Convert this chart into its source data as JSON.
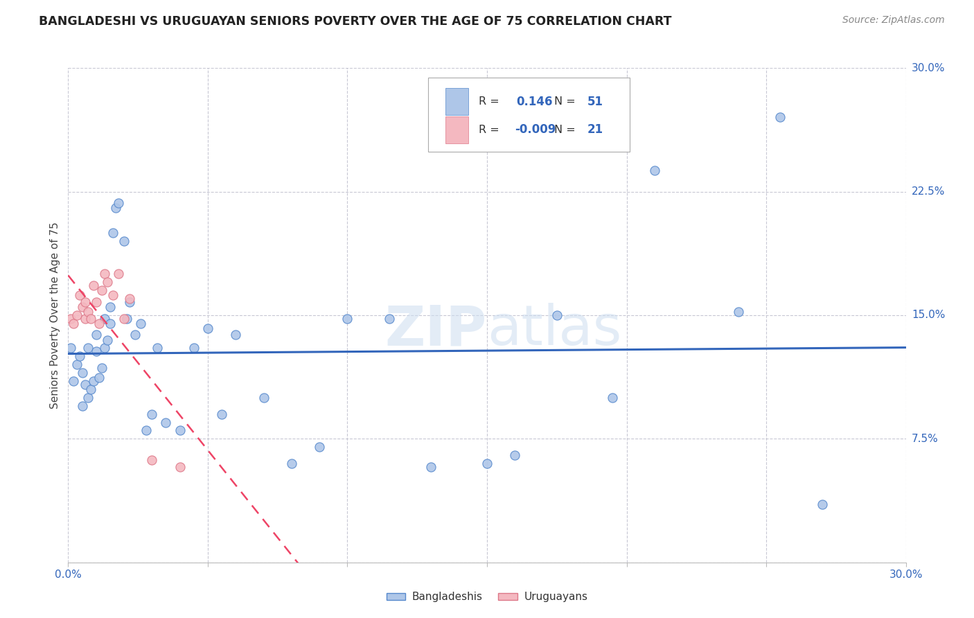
{
  "title": "BANGLADESHI VS URUGUAYAN SENIORS POVERTY OVER THE AGE OF 75 CORRELATION CHART",
  "source": "Source: ZipAtlas.com",
  "ylabel": "Seniors Poverty Over the Age of 75",
  "xlim": [
    0.0,
    0.3
  ],
  "ylim": [
    0.0,
    0.3
  ],
  "xticks": [
    0.0,
    0.05,
    0.1,
    0.15,
    0.2,
    0.25,
    0.3
  ],
  "yticks": [
    0.0,
    0.075,
    0.15,
    0.225,
    0.3
  ],
  "background_color": "#ffffff",
  "grid_color": "#c8c8d4",
  "watermark": "ZIPatlas",
  "bangladeshi_color": "#aec6e8",
  "uruguayan_color": "#f4b8c0",
  "bangladeshi_edge": "#5588cc",
  "uruguayan_edge": "#dd7788",
  "line_blue": "#3366bb",
  "line_pink": "#ee4466",
  "legend_r_blue": "0.146",
  "legend_n_blue": "51",
  "legend_r_pink": "-0.009",
  "legend_n_pink": "21",
  "bangladeshi_x": [
    0.001,
    0.002,
    0.003,
    0.004,
    0.005,
    0.005,
    0.006,
    0.007,
    0.007,
    0.008,
    0.009,
    0.01,
    0.01,
    0.011,
    0.012,
    0.013,
    0.013,
    0.014,
    0.015,
    0.015,
    0.016,
    0.017,
    0.018,
    0.02,
    0.021,
    0.022,
    0.024,
    0.026,
    0.028,
    0.03,
    0.032,
    0.035,
    0.04,
    0.045,
    0.05,
    0.055,
    0.06,
    0.07,
    0.08,
    0.09,
    0.1,
    0.115,
    0.13,
    0.15,
    0.16,
    0.175,
    0.195,
    0.21,
    0.24,
    0.255,
    0.27
  ],
  "bangladeshi_y": [
    0.13,
    0.11,
    0.12,
    0.125,
    0.095,
    0.115,
    0.108,
    0.1,
    0.13,
    0.105,
    0.11,
    0.128,
    0.138,
    0.112,
    0.118,
    0.13,
    0.148,
    0.135,
    0.145,
    0.155,
    0.2,
    0.215,
    0.218,
    0.195,
    0.148,
    0.158,
    0.138,
    0.145,
    0.08,
    0.09,
    0.13,
    0.085,
    0.08,
    0.13,
    0.142,
    0.09,
    0.138,
    0.1,
    0.06,
    0.07,
    0.148,
    0.148,
    0.058,
    0.06,
    0.065,
    0.15,
    0.1,
    0.238,
    0.152,
    0.27,
    0.035
  ],
  "uruguayan_x": [
    0.001,
    0.002,
    0.003,
    0.004,
    0.005,
    0.006,
    0.006,
    0.007,
    0.008,
    0.009,
    0.01,
    0.011,
    0.012,
    0.013,
    0.014,
    0.016,
    0.018,
    0.02,
    0.022,
    0.03,
    0.04
  ],
  "uruguayan_y": [
    0.148,
    0.145,
    0.15,
    0.162,
    0.155,
    0.158,
    0.148,
    0.152,
    0.148,
    0.168,
    0.158,
    0.145,
    0.165,
    0.175,
    0.17,
    0.162,
    0.175,
    0.148,
    0.16,
    0.062,
    0.058
  ]
}
